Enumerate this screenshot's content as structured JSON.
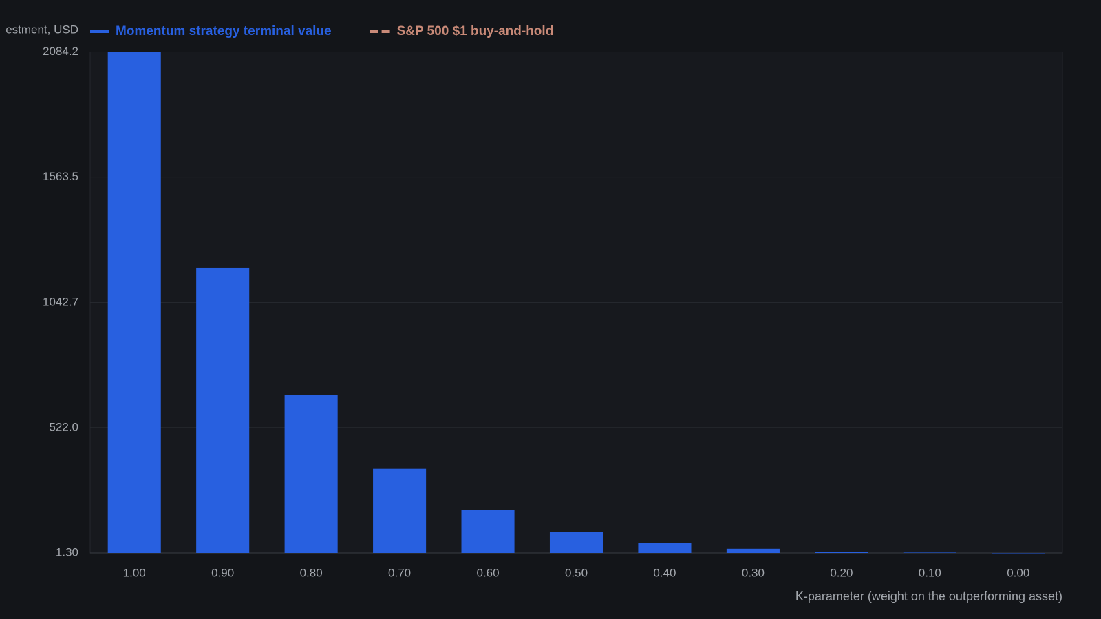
{
  "chart_data": {
    "type": "bar",
    "y_label": "estment, USD",
    "x_label": "K-parameter (weight on the outperforming asset)",
    "categories": [
      "1.00",
      "0.90",
      "0.80",
      "0.70",
      "0.60",
      "0.50",
      "0.40",
      "0.30",
      "0.20",
      "0.10",
      "0.00"
    ],
    "series": [
      {
        "name": "Momentum strategy terminal value",
        "color": "#2860e0",
        "values": [
          2084.2,
          1188,
          658,
          351,
          179,
          89,
          42,
          19,
          7,
          3,
          1.0
        ]
      }
    ],
    "reference_series": {
      "name": "S&P 500 $1 buy-and-hold",
      "color": "#c98a78",
      "dashed": true
    },
    "ylim": [
      1.3,
      2084.2
    ],
    "yticks": [
      {
        "value": 1.3,
        "label": "1.30"
      },
      {
        "value": 522,
        "label": "522.0"
      },
      1042.7,
      1563.5,
      2084.2
    ],
    "grid": true
  }
}
